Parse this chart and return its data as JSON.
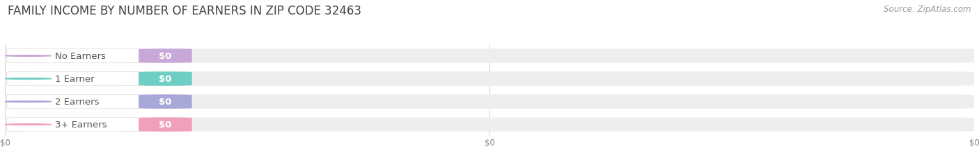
{
  "title": "FAMILY INCOME BY NUMBER OF EARNERS IN ZIP CODE 32463",
  "source_text": "Source: ZipAtlas.com",
  "categories": [
    "No Earners",
    "1 Earner",
    "2 Earners",
    "3+ Earners"
  ],
  "values": [
    0,
    0,
    0,
    0
  ],
  "bar_colors": [
    "#c8a8d8",
    "#6ecec4",
    "#a8a8d8",
    "#f0a0b8"
  ],
  "bg_color": "#ffffff",
  "bar_bg_color": "#eeeeee",
  "title_color": "#444444",
  "title_fontsize": 12,
  "source_fontsize": 8.5,
  "label_fontsize": 9.5,
  "value_fontsize": 9.5
}
